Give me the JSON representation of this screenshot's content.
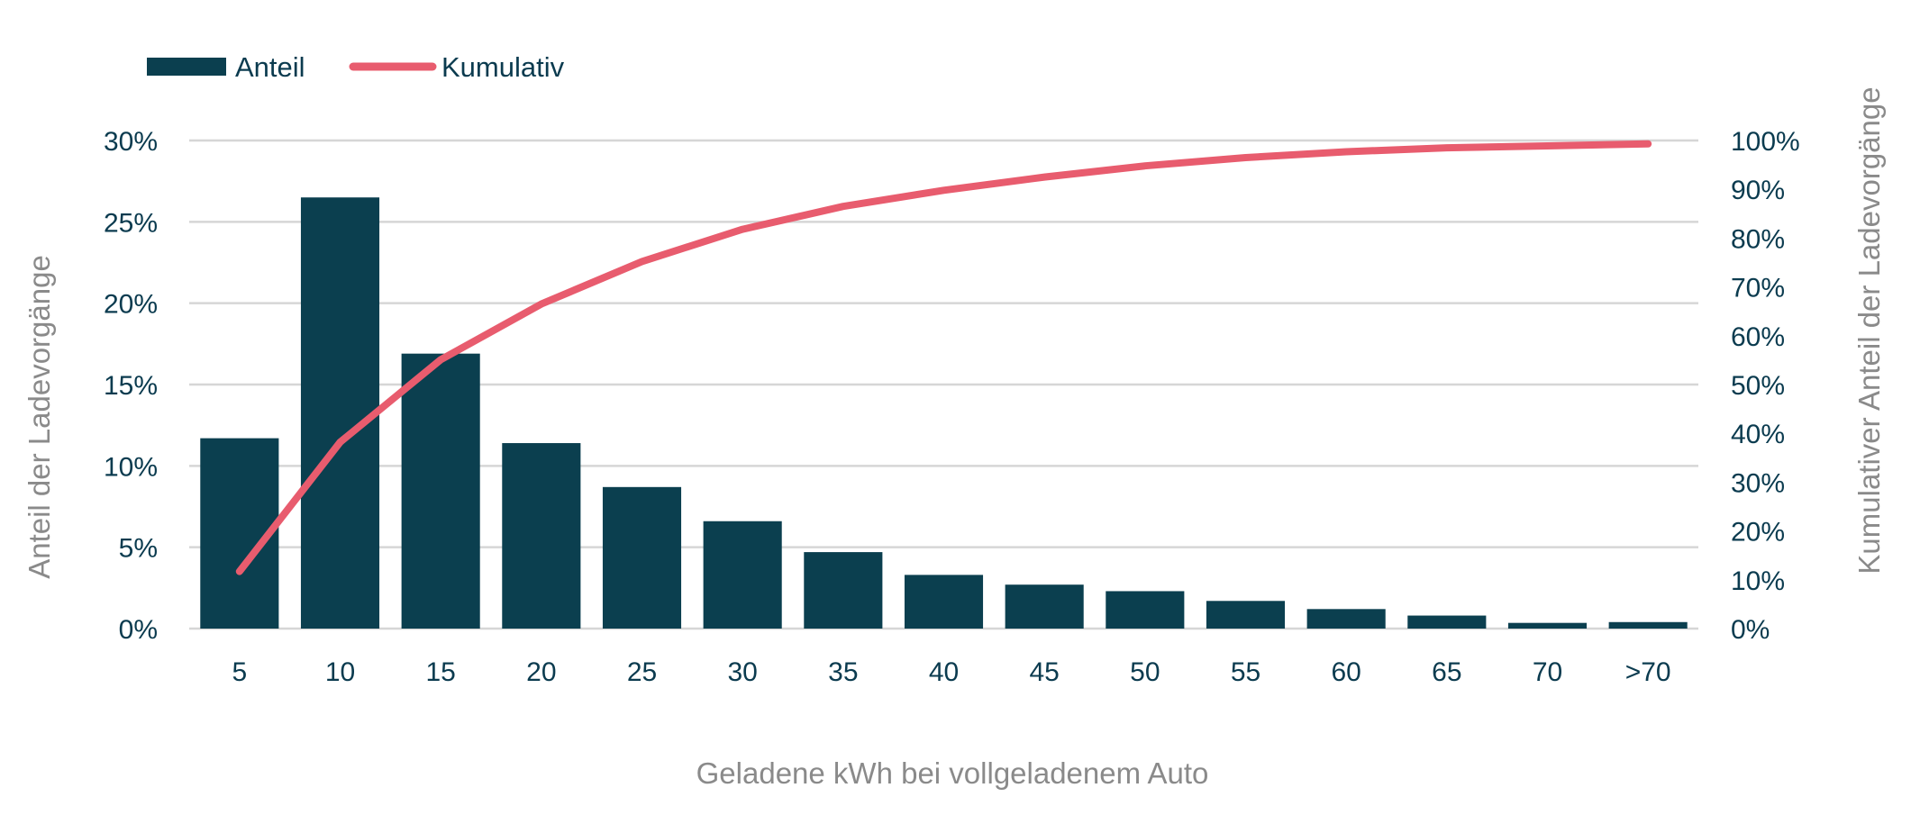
{
  "chart_data": {
    "type": "bar",
    "categories": [
      "5",
      "10",
      "15",
      "20",
      "25",
      "30",
      "35",
      "40",
      "45",
      "50",
      "55",
      "60",
      "65",
      "70",
      ">70"
    ],
    "series": [
      {
        "name": "Anteil",
        "type": "bar",
        "axis": "left",
        "color": "#0b3f4f",
        "values": [
          11.7,
          26.5,
          16.9,
          11.4,
          8.7,
          6.6,
          4.7,
          3.3,
          2.7,
          2.3,
          1.7,
          1.2,
          0.8,
          0.35,
          0.4
        ]
      },
      {
        "name": "Kumulativ",
        "type": "line",
        "axis": "right",
        "color": "#e85c6e",
        "values": [
          11.7,
          38.2,
          55.1,
          66.5,
          75.2,
          81.8,
          86.5,
          89.8,
          92.5,
          94.8,
          96.5,
          97.7,
          98.5,
          98.9,
          99.3
        ]
      }
    ],
    "xlabel": "Geladene kWh bei vollgeladenem Auto",
    "ylabel": "Anteil der Ladevorgänge",
    "y2label": "Kumulativer Anteil der Ladevorgänge",
    "ylim": [
      0,
      30
    ],
    "y2lim": [
      0,
      100
    ],
    "yticks": [
      "0%",
      "5%",
      "10%",
      "15%",
      "20%",
      "25%",
      "30%"
    ],
    "y2ticks": [
      "0%",
      "10%",
      "20%",
      "30%",
      "40%",
      "50%",
      "60%",
      "70%",
      "80%",
      "90%",
      "100%"
    ],
    "grid": true,
    "legend_position": "top-left"
  }
}
